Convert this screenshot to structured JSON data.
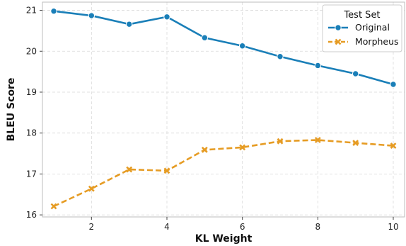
{
  "chart_data": {
    "type": "line",
    "title": "",
    "xlabel": "KL Weight",
    "ylabel": "BLEU Score",
    "x": [
      1,
      2,
      3,
      4,
      5,
      6,
      7,
      8,
      9,
      10
    ],
    "xlim": [
      0.7,
      10.3
    ],
    "ylim": [
      15.95,
      21.2
    ],
    "xticks": [
      2,
      4,
      6,
      8,
      10
    ],
    "yticks": [
      16,
      17,
      18,
      19,
      20,
      21
    ],
    "grid": true,
    "legend": {
      "title": "Test Set",
      "position": "top-right"
    },
    "series": [
      {
        "name": "Original",
        "color": "#1a7fb8",
        "marker": "circle",
        "linestyle": "solid",
        "values": [
          20.98,
          20.87,
          20.66,
          20.84,
          20.33,
          20.13,
          19.87,
          19.65,
          19.45,
          19.19
        ]
      },
      {
        "name": "Morpheus",
        "color": "#e69c24",
        "marker": "x",
        "linestyle": "dashed",
        "values": [
          16.21,
          16.64,
          17.11,
          17.08,
          17.59,
          17.65,
          17.8,
          17.83,
          17.76,
          17.69
        ]
      }
    ]
  }
}
